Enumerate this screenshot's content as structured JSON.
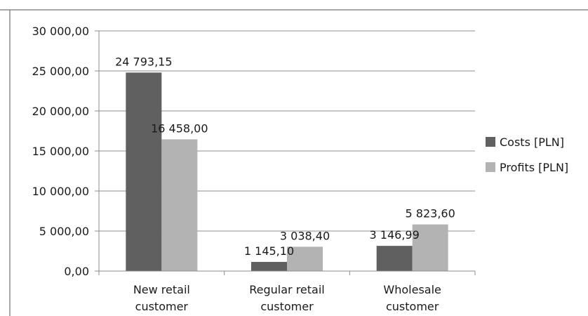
{
  "chart_data": {
    "type": "bar",
    "categories": [
      [
        "New retail",
        "customer"
      ],
      [
        "Regular retail",
        "customer"
      ],
      [
        "Wholesale",
        "customer"
      ]
    ],
    "series": [
      {
        "name": "Costs [PLN]",
        "color": "#606060",
        "values": [
          24793.15,
          1145.1,
          3146.99
        ],
        "labels": [
          "24 793,15",
          "1 145,10",
          "3 146,99"
        ]
      },
      {
        "name": "Profits [PLN]",
        "color": "#b3b3b3",
        "values": [
          16458.0,
          3038.4,
          5823.6
        ],
        "labels": [
          "16 458,00",
          "3 038,40",
          "5 823,60"
        ]
      }
    ],
    "ylim": [
      0,
      30000
    ],
    "yticks": [
      0,
      5000,
      10000,
      15000,
      20000,
      25000,
      30000
    ],
    "ytick_labels": [
      "0,00",
      "5 000,00",
      "10 000,00",
      "15 000,00",
      "20 000,00",
      "25 000,00",
      "30 000,00"
    ],
    "grid": true,
    "legend": "right",
    "title": "",
    "xlabel": "",
    "ylabel": ""
  }
}
